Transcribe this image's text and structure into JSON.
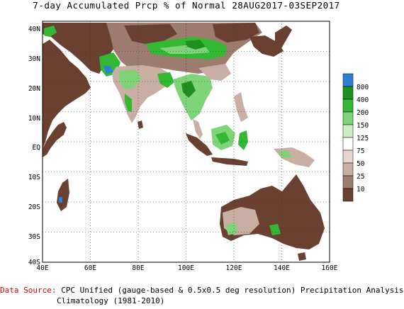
{
  "title": "7-day Accumulated Prcp % of Normal 28AUG2017-03SEP2017",
  "map": {
    "lon_labels": [
      "40E",
      "60E",
      "80E",
      "100E",
      "120E",
      "140E",
      "160E"
    ],
    "lat_labels": [
      "40N",
      "30N",
      "20N",
      "10N",
      "EQ",
      "10S",
      "20S",
      "30S",
      "40S"
    ],
    "colors": {
      "ocean": "#ffffff",
      "very_dry": "#6a4131",
      "dry": "#9d7b6e",
      "below_normal": "#c9aea3",
      "near_normal": "#f2e6df",
      "wet_light": "#cdeec4",
      "wet": "#7fd47a",
      "wet_strong": "#33b833",
      "wet_very": "#1f8f1f",
      "extreme": "#2f7fd9"
    }
  },
  "legend": {
    "items": [
      {
        "label": "800",
        "color": "#2f7fd9"
      },
      {
        "label": "400",
        "color": "#1f8f1f"
      },
      {
        "label": "200",
        "color": "#33b833"
      },
      {
        "label": "150",
        "color": "#7fd47a"
      },
      {
        "label": "125",
        "color": "#cdeec4"
      },
      {
        "label": "75",
        "color": "#ffffff"
      },
      {
        "label": "50",
        "color": "#e8d4cc"
      },
      {
        "label": "25",
        "color": "#c9aea3"
      },
      {
        "label": "10",
        "color": "#9d7b6e"
      },
      {
        "label": "",
        "color": "#6a4131"
      }
    ]
  },
  "source": {
    "label": "Data Source:",
    "text": "CPC Unified (gauge-based & 0.5x0.5 deg resolution) Precipitation Analysis",
    "climatology": "Climatology (1981-2010)"
  }
}
